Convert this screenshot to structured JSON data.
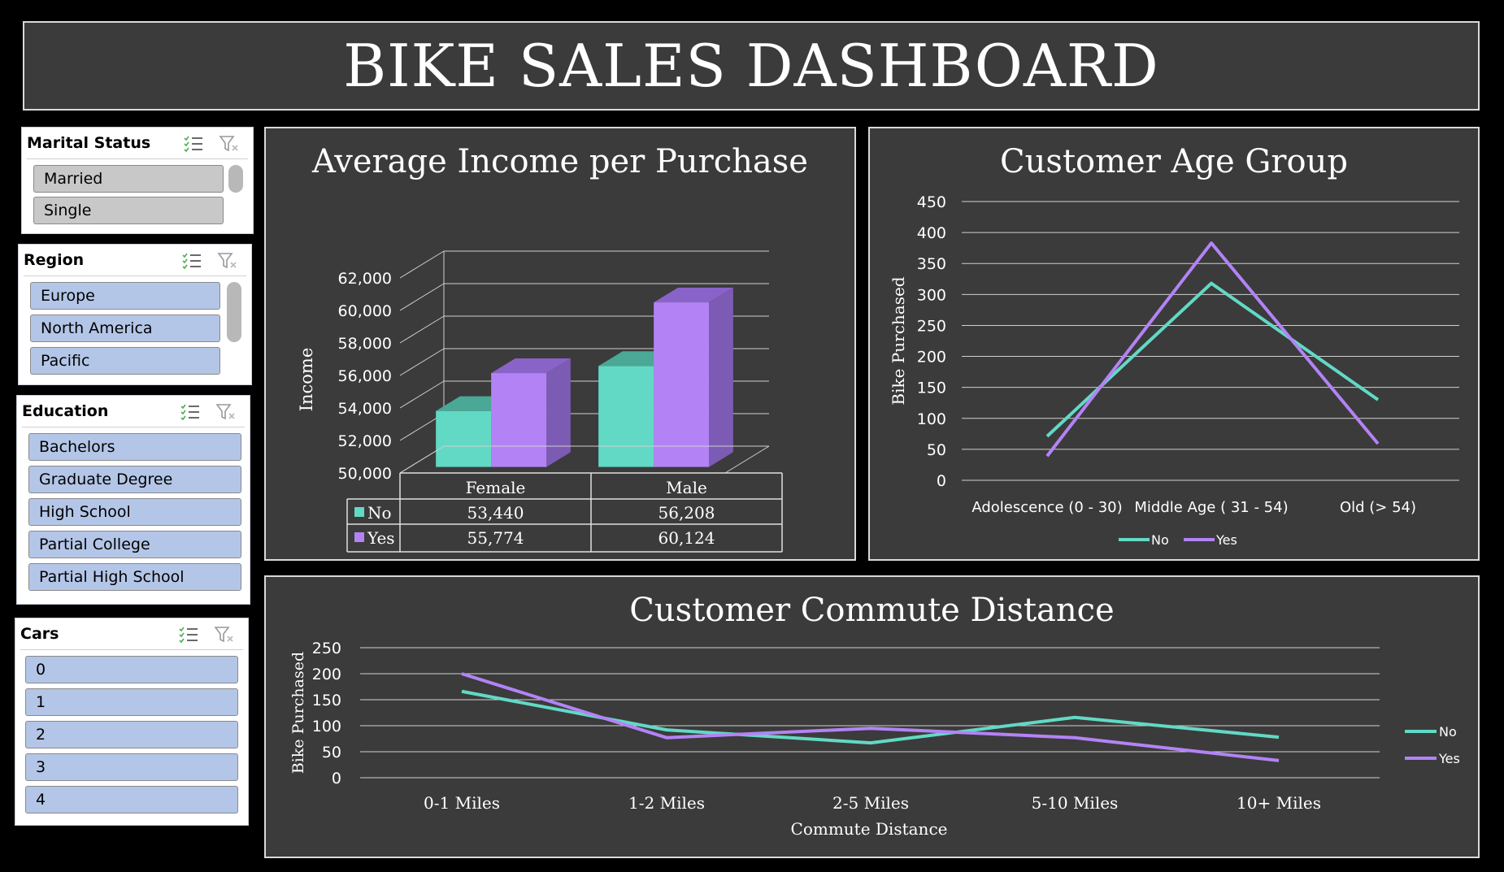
{
  "dashboard": {
    "title": "BIKE SALES DASHBOARD"
  },
  "slicers": [
    {
      "title": "Marital Status",
      "items": [
        "Married",
        "Single"
      ]
    },
    {
      "title": "Region",
      "items": [
        "Europe",
        "North America",
        "Pacific"
      ]
    },
    {
      "title": "Education",
      "items": [
        "Bachelors",
        "Graduate Degree",
        "High School",
        "Partial College",
        "Partial High School"
      ]
    },
    {
      "title": "Cars",
      "items": [
        "0",
        "1",
        "2",
        "3",
        "4"
      ]
    }
  ],
  "colors": {
    "no": "#62d9c5",
    "yes": "#b383f5",
    "no_side": "#43a392",
    "yes_side": "#7c5bb5",
    "background": "#3b3b3b"
  },
  "chart_data": [
    {
      "type": "bar",
      "title": "Average Income per Purchase",
      "ylabel": "Income",
      "categories": [
        "Female",
        "Male"
      ],
      "series": [
        {
          "name": "No",
          "values": [
            53440,
            56208
          ]
        },
        {
          "name": "Yes",
          "values": [
            55774,
            60124
          ]
        }
      ],
      "value_labels": {
        "No": [
          "53,440",
          "56,208"
        ],
        "Yes": [
          "55,774",
          "60,124"
        ]
      },
      "yticks": [
        "50,000",
        "52,000",
        "54,000",
        "56,000",
        "58,000",
        "60,000",
        "62,000"
      ],
      "ylim": [
        50000,
        62000
      ],
      "data_table": true
    },
    {
      "type": "line",
      "title": "Customer Age Group",
      "ylabel": "Bike Purchased",
      "categories": [
        "Adolescence (0 - 30)",
        "Middle Age ( 31 - 54)",
        "Old (> 54)"
      ],
      "series": [
        {
          "name": "No",
          "values": [
            71,
            318,
            130
          ]
        },
        {
          "name": "Yes",
          "values": [
            39,
            383,
            59
          ]
        }
      ],
      "yticks": [
        "0",
        "50",
        "100",
        "150",
        "200",
        "250",
        "300",
        "350",
        "400",
        "450"
      ],
      "ylim": [
        0,
        450
      ],
      "legend": "bottom"
    },
    {
      "type": "line",
      "title": "Customer Commute Distance",
      "xlabel": "Commute Distance",
      "ylabel": "Bike Purchased",
      "categories": [
        "0-1 Miles",
        "1-2 Miles",
        "2-5 Miles",
        "5-10 Miles",
        "10+ Miles"
      ],
      "series": [
        {
          "name": "No",
          "values": [
            166,
            92,
            67,
            116,
            78
          ]
        },
        {
          "name": "Yes",
          "values": [
            200,
            77,
            95,
            77,
            33
          ]
        }
      ],
      "yticks": [
        "0",
        "50",
        "100",
        "150",
        "200",
        "250"
      ],
      "ylim": [
        0,
        250
      ],
      "legend": "right"
    }
  ]
}
